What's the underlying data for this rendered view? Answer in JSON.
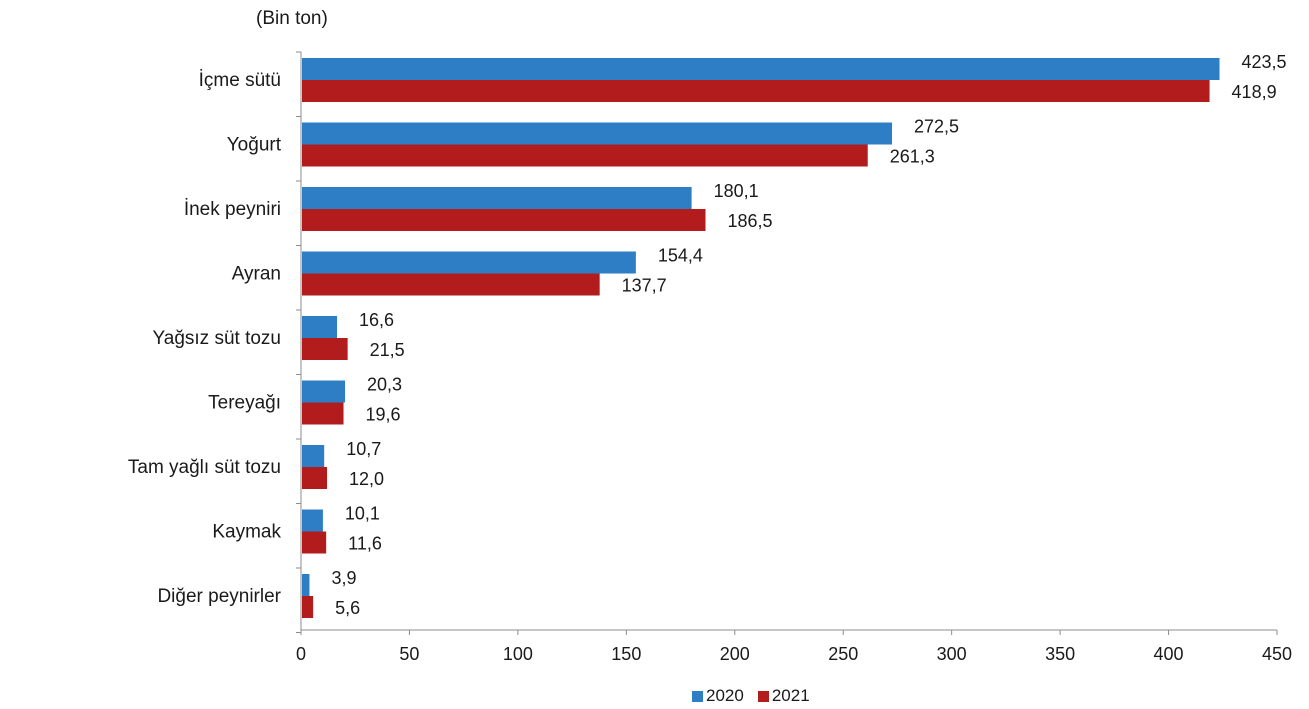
{
  "unit_label": "(Bin ton)",
  "legend": [
    {
      "name": "2020",
      "color": "#2E7EC6"
    },
    {
      "name": "2021",
      "color": "#B21C1C"
    }
  ],
  "chart_data": {
    "type": "bar",
    "orientation": "horizontal",
    "categories": [
      "İçme sütü",
      "Yoğurt",
      "İnek peyniri",
      "Ayran",
      "Yağsız süt tozu",
      "Tereyağı",
      "Tam yağlı süt tozu",
      "Kaymak",
      "Diğer peynirler"
    ],
    "series": [
      {
        "name": "2020",
        "color": "#2E7EC6",
        "values": [
          423.5,
          272.5,
          180.1,
          154.4,
          16.6,
          20.3,
          10.7,
          10.1,
          3.9
        ],
        "labels": [
          "423,5",
          "272,5",
          "180,1",
          "154,4",
          "16,6",
          "20,3",
          "10,7",
          "10,1",
          "3,9"
        ]
      },
      {
        "name": "2021",
        "color": "#B21C1C",
        "values": [
          418.9,
          261.3,
          186.5,
          137.7,
          21.5,
          19.6,
          12.0,
          11.6,
          5.6
        ],
        "labels": [
          "418,9",
          "261,3",
          "186,5",
          "137,7",
          "21,5",
          "19,6",
          "12,0",
          "11,6",
          "5,6"
        ]
      }
    ],
    "xlim": [
      0,
      450
    ],
    "xticks": [
      "0",
      "50",
      "100",
      "150",
      "200",
      "250",
      "300",
      "350",
      "400",
      "450"
    ],
    "xtick_values": [
      0,
      50,
      100,
      150,
      200,
      250,
      300,
      350,
      400,
      450
    ],
    "grid": false,
    "legend_position": "bottom"
  }
}
